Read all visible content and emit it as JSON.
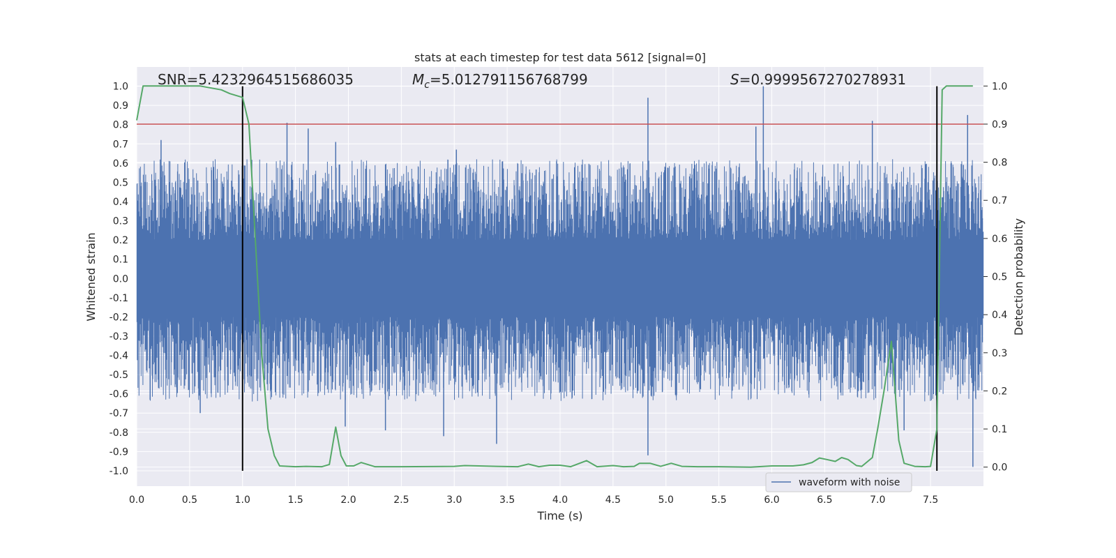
{
  "chart_data": {
    "type": "line",
    "title": "stats at each timestep for test data 5612 [signal=0]",
    "xlabel": "Time (s)",
    "ylabel": "Whitened strain",
    "y2label": "Detection probability",
    "xlim": [
      0,
      8
    ],
    "ylim": [
      -1.08,
      1.1
    ],
    "y2lim": [
      -0.05,
      1.05
    ],
    "x_ticks": [
      0.0,
      0.5,
      1.0,
      1.5,
      2.0,
      2.5,
      3.0,
      3.5,
      4.0,
      4.5,
      5.0,
      5.5,
      6.0,
      6.5,
      7.0,
      7.5
    ],
    "x_tick_labels": [
      "0.0",
      "0.5",
      "1.0",
      "1.5",
      "2.0",
      "2.5",
      "3.0",
      "3.5",
      "4.0",
      "4.5",
      "5.0",
      "5.5",
      "6.0",
      "6.5",
      "7.0",
      "7.5"
    ],
    "y_ticks": [
      1.0,
      0.9,
      0.8,
      0.7,
      0.6,
      0.5,
      0.4,
      0.3,
      0.2,
      0.1,
      0.0,
      -0.1,
      -0.2,
      -0.3,
      -0.4,
      -0.5,
      -0.6,
      -0.7,
      -0.8,
      -0.9,
      -1.0
    ],
    "y_tick_labels": [
      "1.0",
      "0.9",
      "0.8",
      "0.7",
      "0.6",
      "0.5",
      "0.4",
      "0.3",
      "0.2",
      "0.1",
      "0.0",
      "-0.1",
      "-0.2",
      "-0.3",
      "-0.4",
      "-0.5",
      "-0.6",
      "-0.7",
      "-0.8",
      "-0.9",
      "-1.0"
    ],
    "y2_ticks": [
      1.0,
      0.9,
      0.8,
      0.7,
      0.6,
      0.5,
      0.4,
      0.3,
      0.2,
      0.1,
      0.0
    ],
    "y2_tick_labels": [
      "1.0",
      "0.9",
      "0.8",
      "0.7",
      "0.6",
      "0.5",
      "0.4",
      "0.3",
      "0.2",
      "0.1",
      "0.0"
    ],
    "annotations": {
      "snr": "SNR=5.4232964515686035",
      "mc_symbol": "M",
      "mc_sub": "c",
      "mc_value": "=5.012791156768799",
      "s_symbol": "S",
      "s_value": "=0.9999567270278931"
    },
    "threshold": {
      "y2": 0.9,
      "color": "#c44e52"
    },
    "vertical_lines": {
      "x": [
        1.0,
        7.56
      ],
      "y_range": [
        -1.0,
        1.0
      ],
      "color": "#000000"
    },
    "legend": {
      "label": "waveform with noise",
      "position": "lower-right"
    },
    "grid": true,
    "series": [
      {
        "name": "waveform with noise",
        "axis": "left",
        "color": "#4c72b0",
        "description": "dense noise band",
        "band_core": [
          -0.19,
          0.2
        ],
        "peaks": [
          {
            "x": 0.23,
            "y": 0.72
          },
          {
            "x": 1.42,
            "y": 0.81
          },
          {
            "x": 1.62,
            "y": 0.78
          },
          {
            "x": 1.88,
            "y": 0.71
          },
          {
            "x": 3.02,
            "y": 0.67
          },
          {
            "x": 4.83,
            "y": 0.94
          },
          {
            "x": 5.92,
            "y": 1.0
          },
          {
            "x": 5.85,
            "y": 0.79
          },
          {
            "x": 6.95,
            "y": 0.82
          },
          {
            "x": 7.85,
            "y": 0.85
          },
          {
            "x": 4.83,
            "y": -0.92
          },
          {
            "x": 7.9,
            "y": -0.98
          },
          {
            "x": 3.4,
            "y": -0.86
          },
          {
            "x": 2.9,
            "y": -0.82
          },
          {
            "x": 2.35,
            "y": -0.79
          },
          {
            "x": 1.97,
            "y": -0.77
          },
          {
            "x": 0.6,
            "y": -0.7
          },
          {
            "x": 7.25,
            "y": -0.79
          }
        ]
      },
      {
        "name": "",
        "axis": "right",
        "color": "#55a868",
        "x": [
          0.0,
          0.06,
          0.2,
          0.4,
          0.6,
          0.8,
          0.88,
          1.0,
          1.06,
          1.12,
          1.18,
          1.24,
          1.3,
          1.35,
          1.5,
          1.6,
          1.75,
          1.82,
          1.88,
          1.93,
          1.98,
          2.05,
          2.12,
          2.25,
          2.5,
          3.0,
          3.1,
          3.4,
          3.6,
          3.7,
          3.8,
          3.9,
          4.0,
          4.1,
          4.25,
          4.35,
          4.5,
          4.6,
          4.7,
          4.75,
          4.85,
          4.95,
          5.05,
          5.15,
          5.3,
          5.5,
          5.8,
          6.0,
          6.2,
          6.3,
          6.38,
          6.45,
          6.52,
          6.6,
          6.66,
          6.72,
          6.8,
          6.85,
          6.95,
          7.0,
          7.06,
          7.13,
          7.2,
          7.25,
          7.35,
          7.45,
          7.5,
          7.56,
          7.61,
          7.65,
          7.7,
          7.8,
          7.9
        ],
        "y": [
          0.91,
          1.0,
          1.0,
          1.0,
          1.0,
          0.99,
          0.98,
          0.97,
          0.9,
          0.6,
          0.3,
          0.1,
          0.03,
          0.003,
          0.001,
          0.002,
          0.001,
          0.007,
          0.105,
          0.03,
          0.003,
          0.003,
          0.012,
          0.001,
          0.001,
          0.002,
          0.004,
          0.002,
          0.001,
          0.008,
          0.001,
          0.005,
          0.005,
          0.001,
          0.017,
          0.001,
          0.004,
          0.001,
          0.002,
          0.01,
          0.01,
          0.002,
          0.01,
          0.002,
          0.001,
          0.001,
          0.0,
          0.003,
          0.003,
          0.006,
          0.012,
          0.024,
          0.02,
          0.015,
          0.025,
          0.02,
          0.004,
          0.002,
          0.025,
          0.1,
          0.2,
          0.33,
          0.07,
          0.01,
          0.002,
          0.001,
          0.002,
          0.1,
          0.99,
          1.0,
          1.0,
          1.0,
          1.0
        ]
      }
    ]
  }
}
